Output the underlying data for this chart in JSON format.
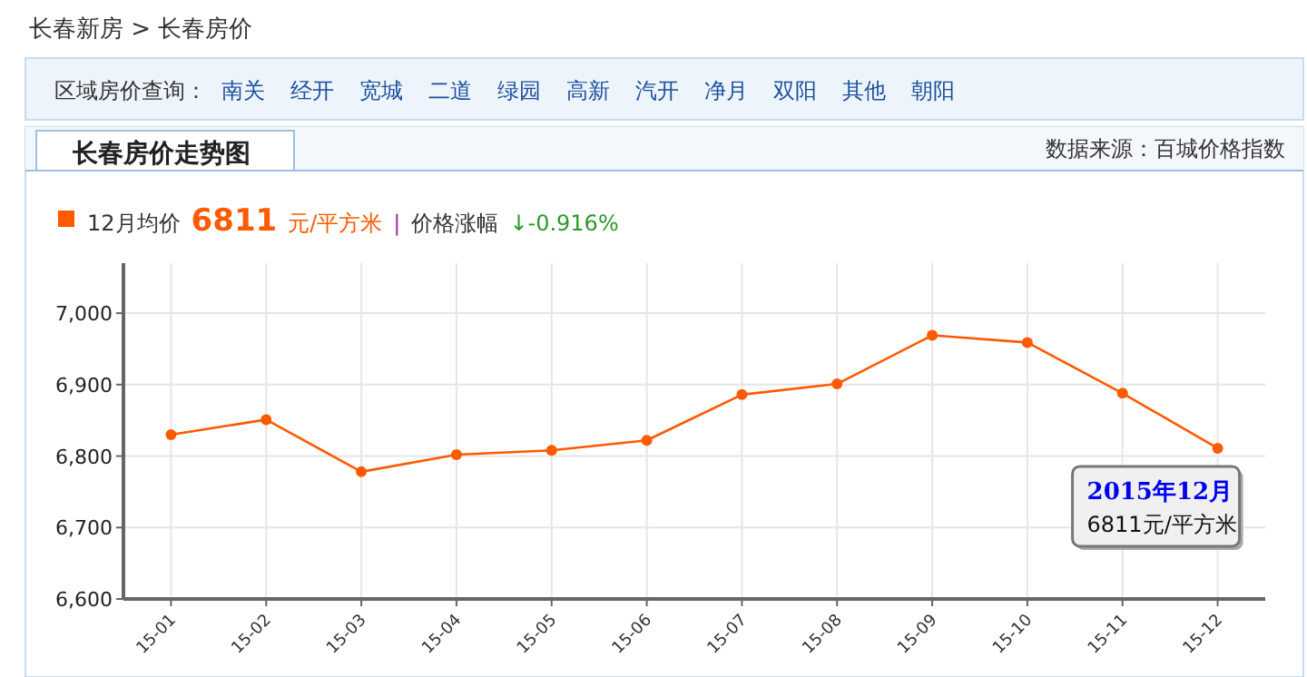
{
  "chart_data": {
    "type": "line",
    "title": "长春房价走势图",
    "categories": [
      "15-01",
      "15-02",
      "15-03",
      "15-04",
      "15-05",
      "15-06",
      "15-07",
      "15-08",
      "15-09",
      "15-10",
      "15-11",
      "15-12"
    ],
    "series": [
      {
        "color": "#ff5a00",
        "values": [
          6830,
          6851,
          6778,
          6802,
          6808,
          6822,
          6886,
          6901,
          6969,
          6959,
          6888,
          6811
        ]
      }
    ],
    "ylim": [
      6600,
      7070
    ],
    "yticks": [
      {
        "value": 6600,
        "label": "6,600"
      },
      {
        "value": 6700,
        "label": "6,700"
      },
      {
        "value": 6800,
        "label": "6,800"
      },
      {
        "value": 6900,
        "label": "6,900"
      },
      {
        "value": 7000,
        "label": "7,000"
      }
    ],
    "grid": true,
    "marker": "circle",
    "line_style": "solid",
    "annotations": [
      "长春新房 > 长春房价",
      "区域房价查询：",
      "南关",
      "经开",
      "宽城",
      "二道",
      "绿园",
      "高新",
      "汽开",
      "净月",
      "双阳",
      "其他",
      "朝阳",
      "数据来源：百城价格指数",
      "12月均价",
      "6811",
      "元/平方米",
      "|",
      "价格涨幅",
      "↓-0.916%",
      {
        "text": "2015年12月\n6811元/平方米",
        "x": "15-12",
        "y": 6811
      }
    ]
  }
}
